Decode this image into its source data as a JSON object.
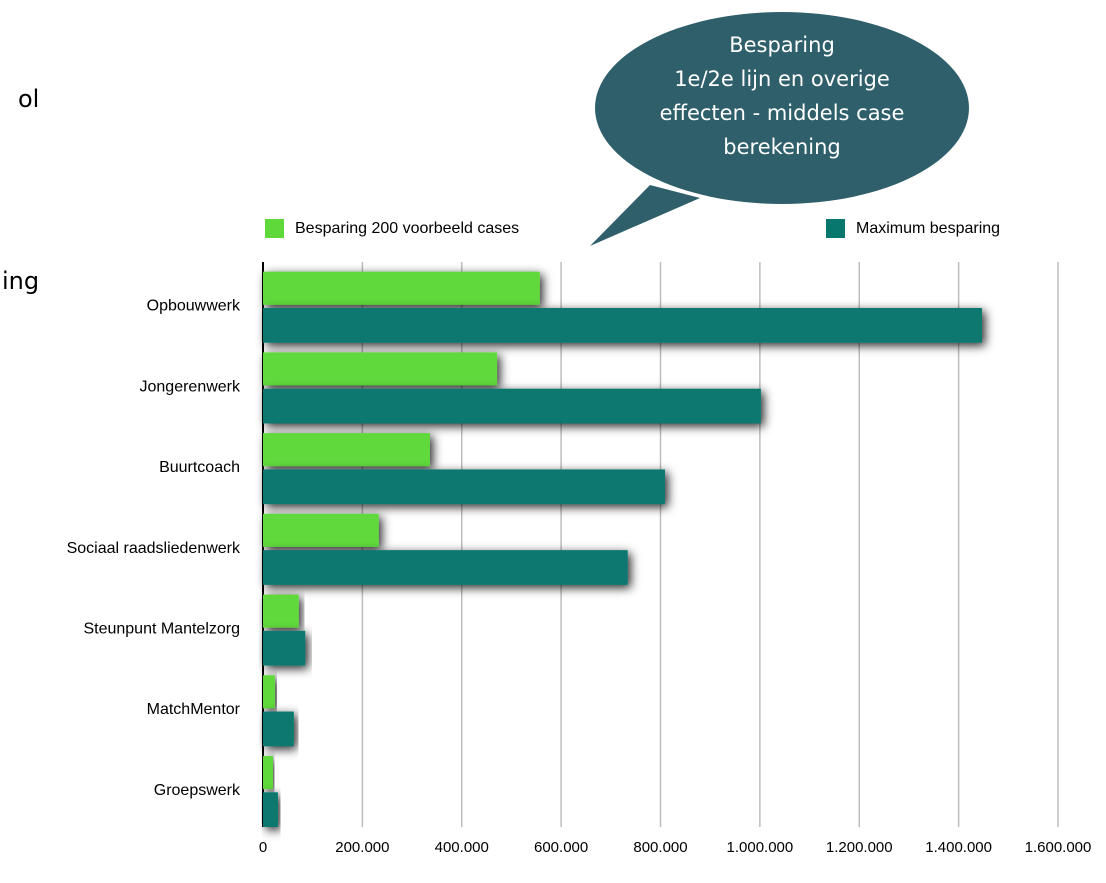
{
  "chart_data": {
    "type": "bar",
    "orientation": "horizontal",
    "slide_fragments": [
      "ol",
      "ing"
    ],
    "annotation": [
      "Besparing",
      "1e/2e lijn en overige",
      "effecten - middels case",
      "berekening"
    ],
    "categories": [
      "Opbouwwerk",
      "Jongerenwerk",
      "Buurtcoach",
      "Sociaal raadsliedenwerk",
      "Steunpunt Mantelzorg",
      "MatchMentor",
      "Groepswerk"
    ],
    "series": [
      {
        "name": "Besparing 200 voorbeeld cases",
        "color": "#5fd93a",
        "values": [
          557000,
          471000,
          336000,
          233000,
          72000,
          24000,
          20000
        ]
      },
      {
        "name": "Maximum besparing",
        "color": "#08786f",
        "values": [
          1447000,
          1002000,
          809000,
          734000,
          85000,
          62000,
          30000
        ]
      }
    ],
    "xlim": [
      0,
      1600000
    ],
    "xticks": [
      0,
      {
        "value": 200000,
        "label": "200.000"
      },
      {
        "value": 400000,
        "label": "400.000"
      },
      {
        "value": 600000,
        "label": "600.000"
      },
      {
        "value": 800000,
        "label": "800.000"
      },
      {
        "value": 1000000,
        "label": "1.000.000"
      },
      {
        "value": 1200000,
        "label": "1.200.000"
      },
      {
        "value": 1400000,
        "label": "1.400.000"
      },
      {
        "value": 1600000,
        "label": "1.600.000"
      }
    ],
    "grid": true,
    "legend": "top"
  }
}
